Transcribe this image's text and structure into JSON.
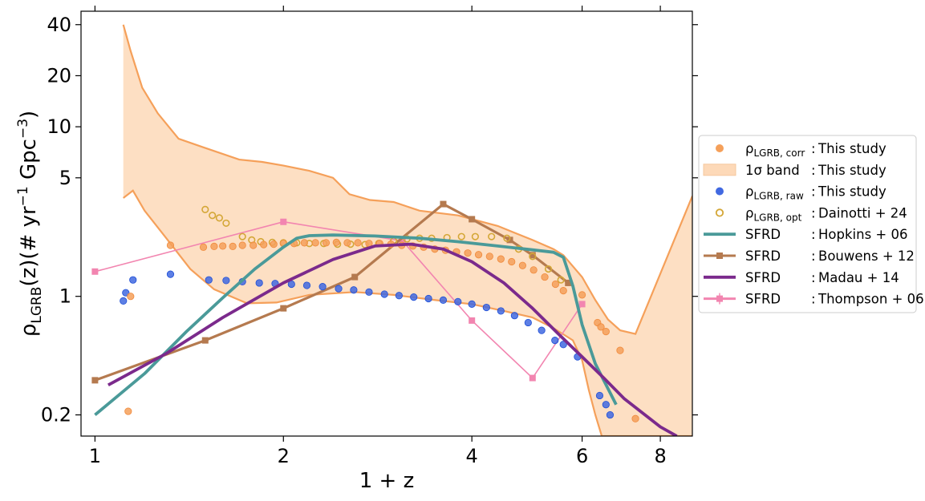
{
  "chart_data": {
    "type": "scatter",
    "xlabel": "1 + z",
    "ylabel": "ρ_LGRB(z)(# yr^-1 Gpc^-3)",
    "xscale": "log",
    "yscale": "log",
    "xlim": [
      0.95,
      9.0
    ],
    "ylim": [
      0.15,
      48
    ],
    "xticks": [
      1,
      2,
      4,
      6,
      8
    ],
    "xtick_labels": [
      "1",
      "2",
      "4",
      "6",
      "8"
    ],
    "yticks": [
      0.2,
      1,
      5,
      10,
      20,
      40
    ],
    "ytick_labels": [
      "0.2",
      "1",
      "5",
      "10",
      "20",
      "40"
    ],
    "legend_position": "right, outside plot",
    "legend": [
      {
        "id": "corr",
        "kind": "dot",
        "color": "#f5a05a",
        "sym": "ρ",
        "sub": "LGRB, corr",
        "colon": ":",
        "ref": "This study"
      },
      {
        "id": "band",
        "kind": "band",
        "color": "#fdd9b8",
        "sym": "1σ band",
        "sub": "",
        "colon": ":",
        "ref": "This study"
      },
      {
        "id": "raw",
        "kind": "dot",
        "color": "#4169e1",
        "sym": "ρ",
        "sub": "LGRB, raw",
        "colon": ":",
        "ref": "This study"
      },
      {
        "id": "opt",
        "kind": "ring",
        "color": "#d4a737",
        "sym": "ρ",
        "sub": "LGRB, opt",
        "colon": ":",
        "ref": "Dainotti + 24"
      },
      {
        "id": "hopkins",
        "kind": "line",
        "color": "#4a9a99",
        "sym": "SFRD",
        "sub": "",
        "colon": ":",
        "ref": "Hopkins + 06"
      },
      {
        "id": "bouwens",
        "kind": "line-square",
        "color": "#b57a4f",
        "sym": "SFRD",
        "sub": "",
        "colon": ":",
        "ref": "Bouwens + 12"
      },
      {
        "id": "madau",
        "kind": "line",
        "color": "#7b2a8c",
        "sym": "SFRD",
        "sub": "",
        "colon": ":",
        "ref": "Madau + 14"
      },
      {
        "id": "thompson",
        "kind": "line-square-err",
        "color": "#f285b0",
        "sym": "SFRD",
        "sub": "",
        "colon": ":",
        "ref": "Thompson + 06"
      }
    ],
    "band": {
      "upper": [
        [
          1.11,
          40
        ],
        [
          1.14,
          28
        ],
        [
          1.19,
          17
        ],
        [
          1.26,
          12
        ],
        [
          1.36,
          8.5
        ],
        [
          1.5,
          7.5
        ],
        [
          1.7,
          6.4
        ],
        [
          1.85,
          6.2
        ],
        [
          2.0,
          5.9
        ],
        [
          2.2,
          5.5
        ],
        [
          2.4,
          5.0
        ],
        [
          2.55,
          4.0
        ],
        [
          2.75,
          3.7
        ],
        [
          3.0,
          3.6
        ],
        [
          3.3,
          3.2
        ],
        [
          3.8,
          3.0
        ],
        [
          4.4,
          2.6
        ],
        [
          5.0,
          2.15
        ],
        [
          5.4,
          1.9
        ],
        [
          5.6,
          1.75
        ],
        [
          6.0,
          1.3
        ],
        [
          6.3,
          0.95
        ],
        [
          6.6,
          0.73
        ],
        [
          6.9,
          0.63
        ],
        [
          7.3,
          0.6
        ],
        [
          9.0,
          3.9
        ]
      ],
      "lower": [
        [
          1.11,
          3.8
        ],
        [
          1.15,
          4.2
        ],
        [
          1.2,
          3.2
        ],
        [
          1.3,
          2.2
        ],
        [
          1.42,
          1.45
        ],
        [
          1.55,
          1.1
        ],
        [
          1.75,
          0.91
        ],
        [
          1.95,
          0.92
        ],
        [
          2.2,
          1.02
        ],
        [
          2.6,
          1.06
        ],
        [
          3.0,
          1.02
        ],
        [
          3.5,
          0.95
        ],
        [
          4.0,
          0.9
        ],
        [
          4.5,
          0.82
        ],
        [
          5.0,
          0.75
        ],
        [
          5.4,
          0.65
        ],
        [
          5.8,
          0.55
        ],
        [
          6.0,
          0.42
        ],
        [
          6.15,
          0.28
        ],
        [
          6.3,
          0.2
        ],
        [
          6.45,
          0.15
        ],
        [
          9.0,
          0.15
        ]
      ]
    },
    "series": [
      {
        "id": "corr",
        "type": "scatter",
        "marker": "filled-circle",
        "color": "#f5a05a",
        "edge": "#f08a3c",
        "points": [
          [
            1.13,
            0.21
          ],
          [
            1.14,
            1.0
          ],
          [
            1.32,
            2.0
          ],
          [
            1.49,
            1.95
          ],
          [
            1.55,
            1.97
          ],
          [
            1.6,
            1.98
          ],
          [
            1.66,
            1.97
          ],
          [
            1.72,
            2.0
          ],
          [
            1.79,
            2.0
          ],
          [
            1.86,
            2.02
          ],
          [
            1.93,
            2.03
          ],
          [
            2.0,
            2.05
          ],
          [
            2.08,
            2.05
          ],
          [
            2.16,
            2.07
          ],
          [
            2.25,
            2.07
          ],
          [
            2.34,
            2.07
          ],
          [
            2.43,
            2.08
          ],
          [
            2.53,
            2.07
          ],
          [
            2.63,
            2.07
          ],
          [
            2.74,
            2.05
          ],
          [
            2.85,
            2.05
          ],
          [
            2.97,
            2.03
          ],
          [
            3.09,
            2.0
          ],
          [
            3.22,
            1.98
          ],
          [
            3.35,
            1.95
          ],
          [
            3.49,
            1.9
          ],
          [
            3.63,
            1.87
          ],
          [
            3.78,
            1.83
          ],
          [
            3.94,
            1.8
          ],
          [
            4.1,
            1.76
          ],
          [
            4.27,
            1.72
          ],
          [
            4.45,
            1.66
          ],
          [
            4.63,
            1.6
          ],
          [
            4.82,
            1.52
          ],
          [
            5.02,
            1.43
          ],
          [
            5.23,
            1.3
          ],
          [
            5.44,
            1.18
          ],
          [
            5.6,
            1.08
          ],
          [
            6.0,
            1.02
          ],
          [
            6.35,
            0.7
          ],
          [
            6.43,
            0.66
          ],
          [
            6.55,
            0.62
          ],
          [
            6.9,
            0.48
          ],
          [
            7.3,
            0.19
          ]
        ]
      },
      {
        "id": "raw",
        "type": "scatter",
        "marker": "filled-circle",
        "color": "#4169e1",
        "edge": "#1f4fd6",
        "points": [
          [
            1.11,
            0.94
          ],
          [
            1.12,
            1.05
          ],
          [
            1.15,
            1.25
          ],
          [
            1.32,
            1.35
          ],
          [
            1.52,
            1.25
          ],
          [
            1.62,
            1.24
          ],
          [
            1.72,
            1.22
          ],
          [
            1.83,
            1.2
          ],
          [
            1.94,
            1.19
          ],
          [
            2.06,
            1.18
          ],
          [
            2.18,
            1.16
          ],
          [
            2.31,
            1.14
          ],
          [
            2.45,
            1.11
          ],
          [
            2.59,
            1.09
          ],
          [
            2.74,
            1.06
          ],
          [
            2.9,
            1.03
          ],
          [
            3.06,
            1.01
          ],
          [
            3.23,
            0.99
          ],
          [
            3.41,
            0.97
          ],
          [
            3.6,
            0.95
          ],
          [
            3.8,
            0.93
          ],
          [
            4.0,
            0.9
          ],
          [
            4.22,
            0.86
          ],
          [
            4.45,
            0.82
          ],
          [
            4.68,
            0.77
          ],
          [
            4.92,
            0.7
          ],
          [
            5.17,
            0.63
          ],
          [
            5.43,
            0.55
          ],
          [
            5.6,
            0.52
          ],
          [
            5.9,
            0.44
          ],
          [
            6.4,
            0.26
          ],
          [
            6.55,
            0.23
          ],
          [
            6.65,
            0.2
          ]
        ]
      },
      {
        "id": "opt",
        "type": "scatter",
        "marker": "open-circle",
        "color": "#d4a737",
        "points": [
          [
            1.5,
            3.25
          ],
          [
            1.54,
            3.0
          ],
          [
            1.58,
            2.9
          ],
          [
            1.62,
            2.7
          ],
          [
            1.72,
            2.25
          ],
          [
            1.78,
            2.15
          ],
          [
            1.84,
            2.1
          ],
          [
            1.92,
            2.08
          ],
          [
            2.0,
            2.07
          ],
          [
            2.1,
            2.07
          ],
          [
            2.2,
            2.05
          ],
          [
            2.32,
            2.05
          ],
          [
            2.44,
            2.03
          ],
          [
            2.56,
            2.03
          ],
          [
            2.7,
            2.02
          ],
          [
            2.84,
            2.05
          ],
          [
            3.0,
            2.12
          ],
          [
            3.15,
            2.18
          ],
          [
            3.3,
            2.2
          ],
          [
            3.45,
            2.2
          ],
          [
            3.65,
            2.22
          ],
          [
            3.85,
            2.25
          ],
          [
            4.05,
            2.25
          ],
          [
            4.3,
            2.25
          ],
          [
            4.55,
            2.2
          ],
          [
            4.75,
            1.9
          ],
          [
            5.0,
            1.72
          ],
          [
            5.3,
            1.45
          ],
          [
            5.55,
            1.25
          ]
        ]
      },
      {
        "id": "hopkins",
        "type": "line",
        "color": "#4a9a99",
        "points": [
          [
            1.0,
            0.2
          ],
          [
            1.2,
            0.35
          ],
          [
            1.4,
            0.62
          ],
          [
            1.6,
            0.98
          ],
          [
            1.8,
            1.45
          ],
          [
            2.0,
            1.95
          ],
          [
            2.1,
            2.2
          ],
          [
            2.2,
            2.28
          ],
          [
            2.4,
            2.3
          ],
          [
            2.8,
            2.27
          ],
          [
            3.3,
            2.2
          ],
          [
            3.8,
            2.1
          ],
          [
            4.4,
            1.98
          ],
          [
            5.0,
            1.88
          ],
          [
            5.4,
            1.82
          ],
          [
            5.6,
            1.7
          ],
          [
            5.8,
            1.15
          ],
          [
            6.0,
            0.68
          ],
          [
            6.3,
            0.4
          ],
          [
            6.8,
            0.23
          ]
        ]
      },
      {
        "id": "bouwens",
        "type": "line",
        "marker": "square",
        "color": "#b57a4f",
        "points": [
          [
            1.0,
            0.32
          ],
          [
            1.5,
            0.55
          ],
          [
            2.0,
            0.85
          ],
          [
            2.6,
            1.3
          ],
          [
            3.6,
            3.5
          ],
          [
            4.0,
            2.85
          ],
          [
            4.6,
            2.15
          ],
          [
            5.0,
            1.75
          ],
          [
            5.7,
            1.2
          ]
        ]
      },
      {
        "id": "madau",
        "type": "line",
        "color": "#7b2a8c",
        "points": [
          [
            1.05,
            0.3
          ],
          [
            1.3,
            0.46
          ],
          [
            1.6,
            0.75
          ],
          [
            2.0,
            1.2
          ],
          [
            2.4,
            1.65
          ],
          [
            2.8,
            1.98
          ],
          [
            3.2,
            2.03
          ],
          [
            3.6,
            1.9
          ],
          [
            4.0,
            1.6
          ],
          [
            4.5,
            1.2
          ],
          [
            5.0,
            0.85
          ],
          [
            5.5,
            0.6
          ],
          [
            6.0,
            0.44
          ],
          [
            6.5,
            0.33
          ],
          [
            7.0,
            0.25
          ],
          [
            8.0,
            0.17
          ],
          [
            8.5,
            0.15
          ]
        ]
      },
      {
        "id": "thompson",
        "type": "line",
        "marker": "square",
        "color": "#f285b0",
        "points": [
          [
            1.0,
            1.4
          ],
          [
            2.0,
            2.75
          ],
          [
            3.1,
            2.12
          ],
          [
            4.0,
            0.72
          ],
          [
            5.0,
            0.33
          ],
          [
            6.0,
            0.9
          ]
        ]
      }
    ]
  }
}
